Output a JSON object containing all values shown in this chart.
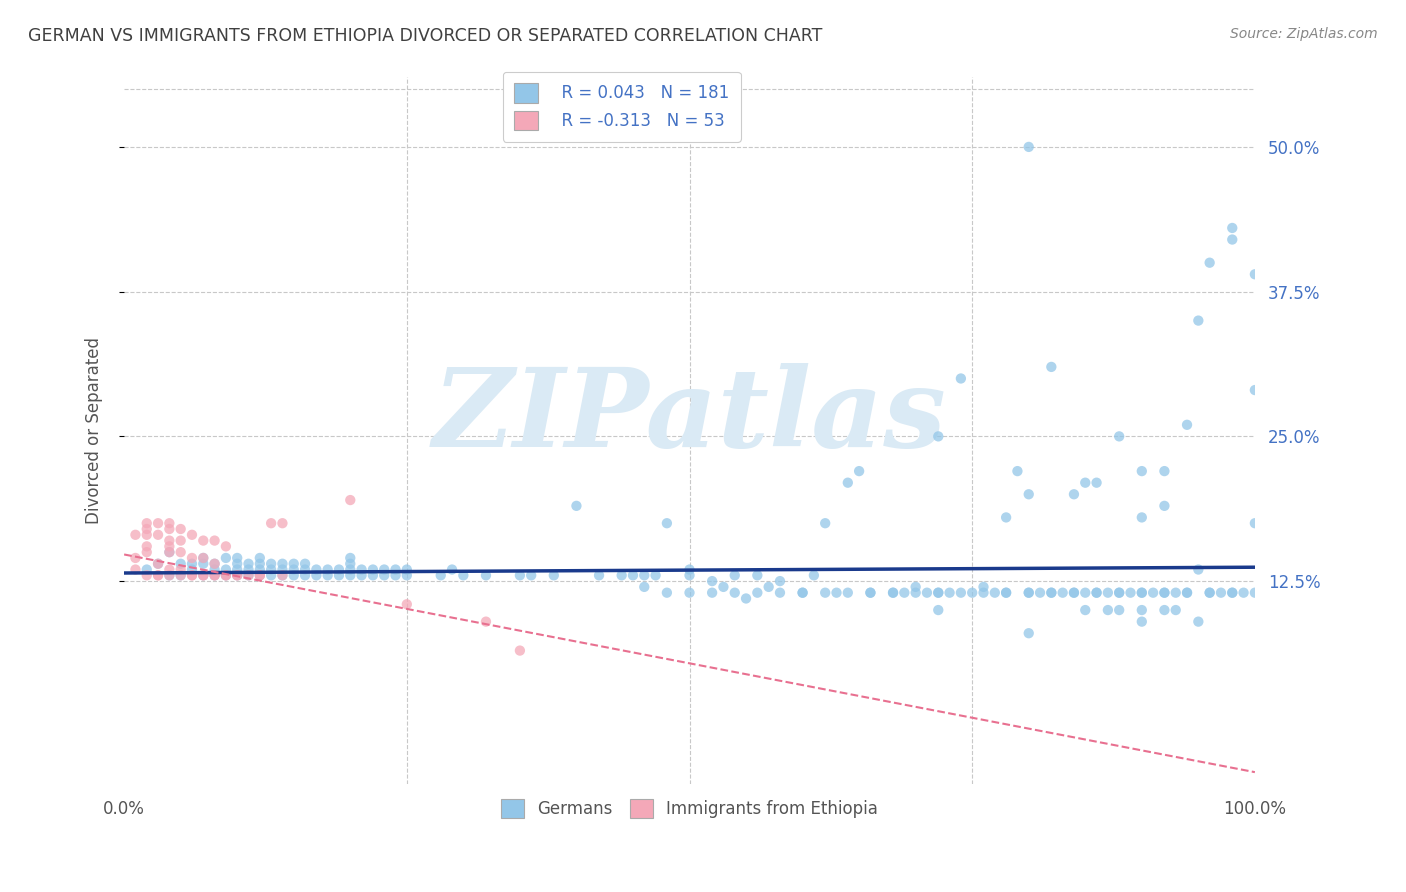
{
  "title": "GERMAN VS IMMIGRANTS FROM ETHIOPIA DIVORCED OR SEPARATED CORRELATION CHART",
  "source": "Source: ZipAtlas.com",
  "ylabel": "Divorced or Separated",
  "watermark": "ZIPatlas",
  "legend_blue_r": "R = 0.043",
  "legend_blue_n": "N = 181",
  "legend_pink_r": "R = -0.313",
  "legend_pink_n": "N = 53",
  "legend_label_blue": "Germans",
  "legend_label_pink": "Immigrants from Ethiopia",
  "xlim": [
    0.0,
    1.0
  ],
  "ylim": [
    -0.05,
    0.56
  ],
  "yticks": [
    0.125,
    0.25,
    0.375,
    0.5
  ],
  "ytick_labels": [
    "12.5%",
    "25.0%",
    "37.5%",
    "50.0%"
  ],
  "blue_scatter_x": [
    0.02,
    0.03,
    0.04,
    0.04,
    0.05,
    0.05,
    0.06,
    0.06,
    0.07,
    0.07,
    0.07,
    0.08,
    0.08,
    0.08,
    0.09,
    0.09,
    0.09,
    0.1,
    0.1,
    0.1,
    0.1,
    0.11,
    0.11,
    0.11,
    0.12,
    0.12,
    0.12,
    0.12,
    0.13,
    0.13,
    0.13,
    0.14,
    0.14,
    0.14,
    0.15,
    0.15,
    0.15,
    0.16,
    0.16,
    0.16,
    0.17,
    0.17,
    0.18,
    0.18,
    0.19,
    0.19,
    0.2,
    0.2,
    0.2,
    0.2,
    0.21,
    0.21,
    0.22,
    0.22,
    0.23,
    0.23,
    0.24,
    0.24,
    0.25,
    0.25,
    0.28,
    0.29,
    0.3,
    0.32,
    0.35,
    0.36,
    0.38,
    0.4,
    0.42,
    0.44,
    0.45,
    0.46,
    0.47,
    0.48,
    0.5,
    0.5,
    0.52,
    0.53,
    0.54,
    0.55,
    0.56,
    0.57,
    0.58,
    0.6,
    0.61,
    0.62,
    0.63,
    0.64,
    0.65,
    0.66,
    0.68,
    0.69,
    0.7,
    0.71,
    0.72,
    0.73,
    0.75,
    0.76,
    0.77,
    0.78,
    0.79,
    0.8,
    0.81,
    0.82,
    0.83,
    0.84,
    0.85,
    0.86,
    0.87,
    0.88,
    0.89,
    0.9,
    0.91,
    0.92,
    0.93,
    0.94,
    0.95,
    0.96,
    0.97,
    0.98,
    0.99,
    1.0,
    0.46,
    0.48,
    0.5,
    0.52,
    0.54,
    0.56,
    0.58,
    0.6,
    0.62,
    0.64,
    0.66,
    0.68,
    0.7,
    0.72,
    0.74,
    0.76,
    0.78,
    0.8,
    0.82,
    0.84,
    0.86,
    0.88,
    0.9,
    0.92,
    0.94,
    0.96,
    0.98,
    1.0,
    0.72,
    0.74,
    0.78,
    0.8,
    0.82,
    0.84,
    0.86,
    0.88,
    0.9,
    0.92,
    0.94,
    0.96,
    0.98,
    1.0,
    0.8,
    0.85,
    0.9,
    0.92,
    0.95,
    0.98,
    1.0,
    0.72,
    0.8,
    0.85,
    0.9,
    0.95,
    0.87,
    0.92,
    0.88,
    0.9,
    0.93
  ],
  "blue_scatter_y": [
    0.135,
    0.14,
    0.13,
    0.15,
    0.14,
    0.13,
    0.14,
    0.135,
    0.13,
    0.14,
    0.145,
    0.13,
    0.135,
    0.14,
    0.13,
    0.135,
    0.145,
    0.13,
    0.135,
    0.14,
    0.145,
    0.13,
    0.135,
    0.14,
    0.13,
    0.135,
    0.14,
    0.145,
    0.13,
    0.135,
    0.14,
    0.13,
    0.135,
    0.14,
    0.13,
    0.135,
    0.14,
    0.13,
    0.135,
    0.14,
    0.13,
    0.135,
    0.13,
    0.135,
    0.13,
    0.135,
    0.13,
    0.135,
    0.14,
    0.145,
    0.13,
    0.135,
    0.13,
    0.135,
    0.13,
    0.135,
    0.13,
    0.135,
    0.13,
    0.135,
    0.13,
    0.135,
    0.13,
    0.13,
    0.13,
    0.13,
    0.13,
    0.19,
    0.13,
    0.13,
    0.13,
    0.13,
    0.13,
    0.175,
    0.13,
    0.135,
    0.125,
    0.12,
    0.13,
    0.11,
    0.13,
    0.12,
    0.125,
    0.115,
    0.13,
    0.175,
    0.115,
    0.21,
    0.22,
    0.115,
    0.115,
    0.115,
    0.12,
    0.115,
    0.115,
    0.115,
    0.115,
    0.12,
    0.115,
    0.115,
    0.22,
    0.115,
    0.115,
    0.115,
    0.115,
    0.115,
    0.115,
    0.115,
    0.115,
    0.115,
    0.115,
    0.115,
    0.115,
    0.115,
    0.115,
    0.115,
    0.135,
    0.115,
    0.115,
    0.115,
    0.115,
    0.175,
    0.12,
    0.115,
    0.115,
    0.115,
    0.115,
    0.115,
    0.115,
    0.115,
    0.115,
    0.115,
    0.115,
    0.115,
    0.115,
    0.115,
    0.115,
    0.115,
    0.115,
    0.115,
    0.115,
    0.115,
    0.115,
    0.115,
    0.115,
    0.115,
    0.115,
    0.115,
    0.115,
    0.115,
    0.25,
    0.3,
    0.18,
    0.2,
    0.31,
    0.2,
    0.21,
    0.25,
    0.18,
    0.19,
    0.26,
    0.4,
    0.43,
    0.39,
    0.5,
    0.21,
    0.22,
    0.22,
    0.35,
    0.42,
    0.29,
    0.1,
    0.08,
    0.1,
    0.09,
    0.09,
    0.1,
    0.1,
    0.1,
    0.1,
    0.1
  ],
  "pink_scatter_x": [
    0.01,
    0.01,
    0.01,
    0.02,
    0.02,
    0.02,
    0.02,
    0.02,
    0.02,
    0.03,
    0.03,
    0.03,
    0.03,
    0.04,
    0.04,
    0.04,
    0.04,
    0.04,
    0.04,
    0.05,
    0.05,
    0.05,
    0.05,
    0.06,
    0.06,
    0.07,
    0.07,
    0.08,
    0.08,
    0.09,
    0.13,
    0.14,
    0.2,
    0.25,
    0.32,
    0.35,
    0.14,
    0.06,
    0.07,
    0.08,
    0.09,
    0.1,
    0.11,
    0.12,
    0.03,
    0.04,
    0.05,
    0.06,
    0.07,
    0.08,
    0.09,
    0.1,
    0.12
  ],
  "pink_scatter_y": [
    0.165,
    0.145,
    0.135,
    0.175,
    0.17,
    0.165,
    0.155,
    0.15,
    0.13,
    0.175,
    0.165,
    0.14,
    0.13,
    0.175,
    0.17,
    0.16,
    0.155,
    0.15,
    0.135,
    0.17,
    0.16,
    0.15,
    0.135,
    0.165,
    0.145,
    0.16,
    0.145,
    0.16,
    0.14,
    0.155,
    0.175,
    0.175,
    0.195,
    0.105,
    0.09,
    0.065,
    0.13,
    0.13,
    0.13,
    0.13,
    0.13,
    0.13,
    0.13,
    0.13,
    0.13,
    0.13,
    0.13,
    0.13,
    0.13,
    0.13,
    0.13,
    0.13,
    0.13
  ],
  "blue_line_x": [
    0.0,
    1.0
  ],
  "blue_line_y": [
    0.132,
    0.137
  ],
  "pink_line_x": [
    0.0,
    1.0
  ],
  "pink_line_y": [
    0.148,
    -0.04
  ],
  "blue_scatter_color": "#93c6e8",
  "pink_scatter_color": "#f4a8b8",
  "blue_line_color": "#1a3a8c",
  "pink_line_color": "#e87090",
  "background_color": "#ffffff",
  "grid_color": "#c8c8c8",
  "title_color": "#404040",
  "watermark_color": "#daeaf5",
  "marker_size": 55,
  "marker_alpha": 0.75
}
